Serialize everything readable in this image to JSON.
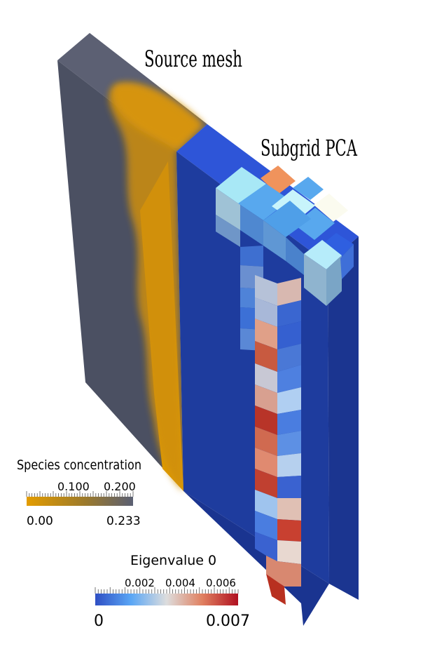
{
  "labels": {
    "source": "Source mesh",
    "subgrid": "Subgrid PCA"
  },
  "legend_species": {
    "title": "Species concentration",
    "min": "0.00",
    "max": "0.233",
    "ticks": [
      "0.100",
      "0.200"
    ],
    "range": [
      0,
      0.233
    ],
    "colors": [
      "#e39c00",
      "#5a5f73"
    ]
  },
  "legend_eigen": {
    "title": "Eigenvalue 0",
    "min": "0",
    "max": "0.007",
    "ticks": [
      "0.002",
      "0.004",
      "0.006"
    ],
    "range": [
      0,
      0.007
    ],
    "colors": [
      "#2f4fc4",
      "#5aa6f5",
      "#dddddd",
      "#e08060",
      "#b01020"
    ]
  },
  "colors": {
    "slab_face": "#4b5062",
    "slab_side": "#5c6073",
    "mesh_base": "#1e3c9e",
    "mesh_side": "#17317f",
    "orange": "#df9a00"
  }
}
